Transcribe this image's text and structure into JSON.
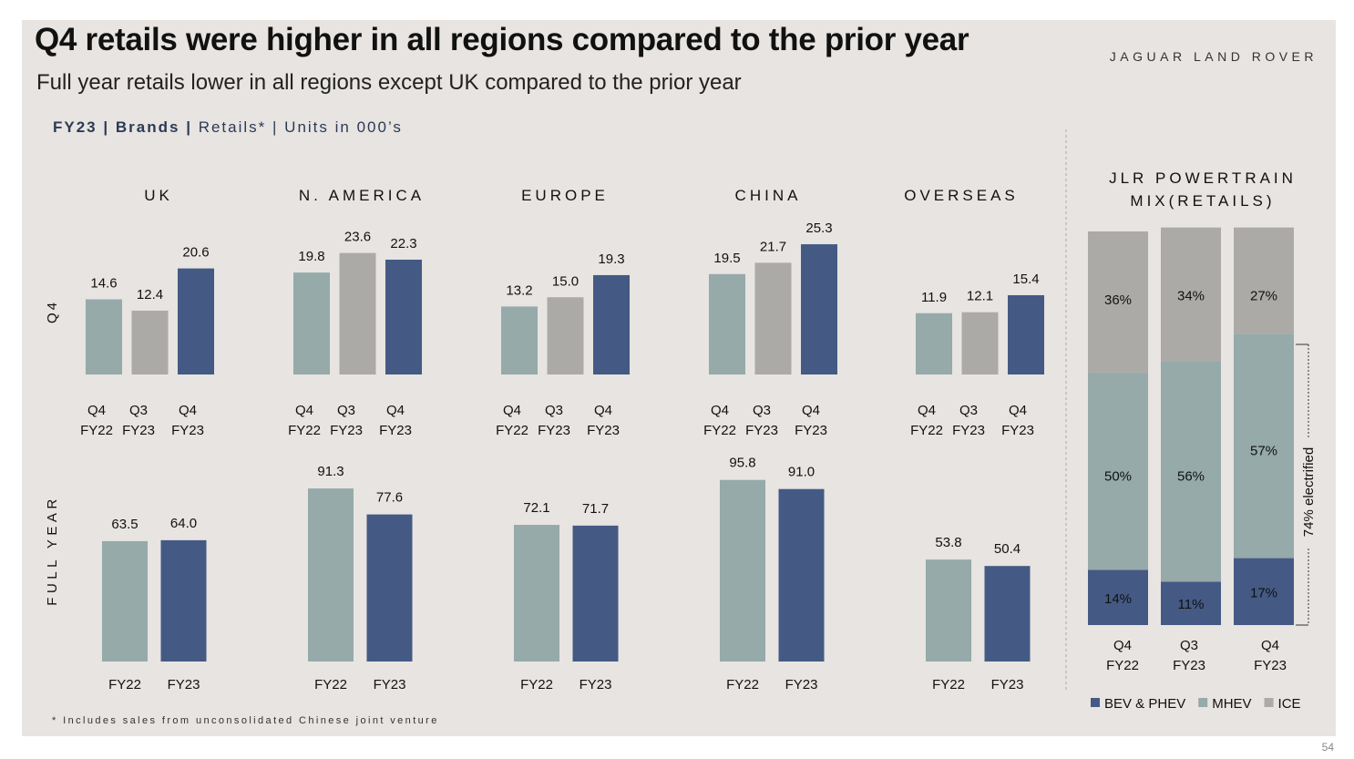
{
  "title": "Q4 retails were higher in all regions compared to the prior year",
  "subtitle": "Full year retails lower in all regions except UK compared to the prior year",
  "logo": "JAGUAR LAND ROVER",
  "breadcrumb": {
    "part1": "FY23",
    "sep1": "|",
    "part2": "Brands",
    "sep2": "|",
    "part3": "Retails*",
    "sep3": "|",
    "part4": "Units in 000’s"
  },
  "footnote": "* Includes sales from unconsolidated Chinese joint venture",
  "page_number": "54",
  "row_labels": {
    "q4": "Q4",
    "full_year": "FULL YEAR"
  },
  "colors": {
    "fy22": "#95aaa9",
    "q3": "#acaaa7",
    "fy23": "#445a84",
    "bev": "#445a84",
    "mhev": "#95aaa9",
    "ice": "#acaaa7"
  },
  "chart_data": [
    {
      "type": "bar",
      "chart": "Q4 retails",
      "categories": [
        "Q4 FY22",
        "Q3 FY23",
        "Q4 FY23"
      ],
      "category_lines": [
        [
          "Q4",
          "FY22"
        ],
        [
          "Q3",
          "FY23"
        ],
        [
          "Q4",
          "FY23"
        ]
      ],
      "regions": [
        {
          "name": "UK",
          "values": [
            14.6,
            12.4,
            20.6
          ]
        },
        {
          "name": "N. AMERICA",
          "values": [
            19.8,
            23.6,
            22.3
          ]
        },
        {
          "name": "EUROPE",
          "values": [
            13.2,
            15.0,
            19.3
          ]
        },
        {
          "name": "CHINA",
          "values": [
            19.5,
            21.7,
            25.3
          ]
        },
        {
          "name": "OVERSEAS",
          "values": [
            11.9,
            12.1,
            15.4
          ]
        }
      ]
    },
    {
      "type": "bar",
      "chart": "Full year retails",
      "categories": [
        "FY22",
        "FY23"
      ],
      "regions": [
        {
          "name": "UK",
          "values": [
            63.5,
            64.0
          ]
        },
        {
          "name": "N. AMERICA",
          "values": [
            91.3,
            77.6
          ]
        },
        {
          "name": "EUROPE",
          "values": [
            72.1,
            71.7
          ]
        },
        {
          "name": "CHINA",
          "values": [
            95.8,
            91.0
          ]
        },
        {
          "name": "OVERSEAS",
          "values": [
            53.8,
            50.4
          ]
        }
      ]
    },
    {
      "type": "bar",
      "stacked": true,
      "title": "JLR POWERTRAIN MIX(RETAILS)",
      "title_lines": [
        "JLR POWERTRAIN",
        "MIX(RETAILS)"
      ],
      "categories": [
        "Q4 FY22",
        "Q3 FY23",
        "Q4 FY23"
      ],
      "category_lines": [
        [
          "Q4",
          "FY22"
        ],
        [
          "Q3",
          "FY23"
        ],
        [
          "Q4",
          "FY23"
        ]
      ],
      "series": [
        {
          "name": "BEV & PHEV",
          "values": [
            14,
            11,
            17
          ],
          "labels": [
            "14%",
            "11%",
            "17%"
          ]
        },
        {
          "name": "MHEV",
          "values": [
            50,
            56,
            57
          ],
          "labels": [
            "50%",
            "56%",
            "57%"
          ]
        },
        {
          "name": "ICE",
          "values": [
            36,
            34,
            27
          ],
          "labels": [
            "36%",
            "34%",
            "27%"
          ]
        }
      ],
      "annotation": "74% electrified",
      "legend": "bottom"
    }
  ]
}
